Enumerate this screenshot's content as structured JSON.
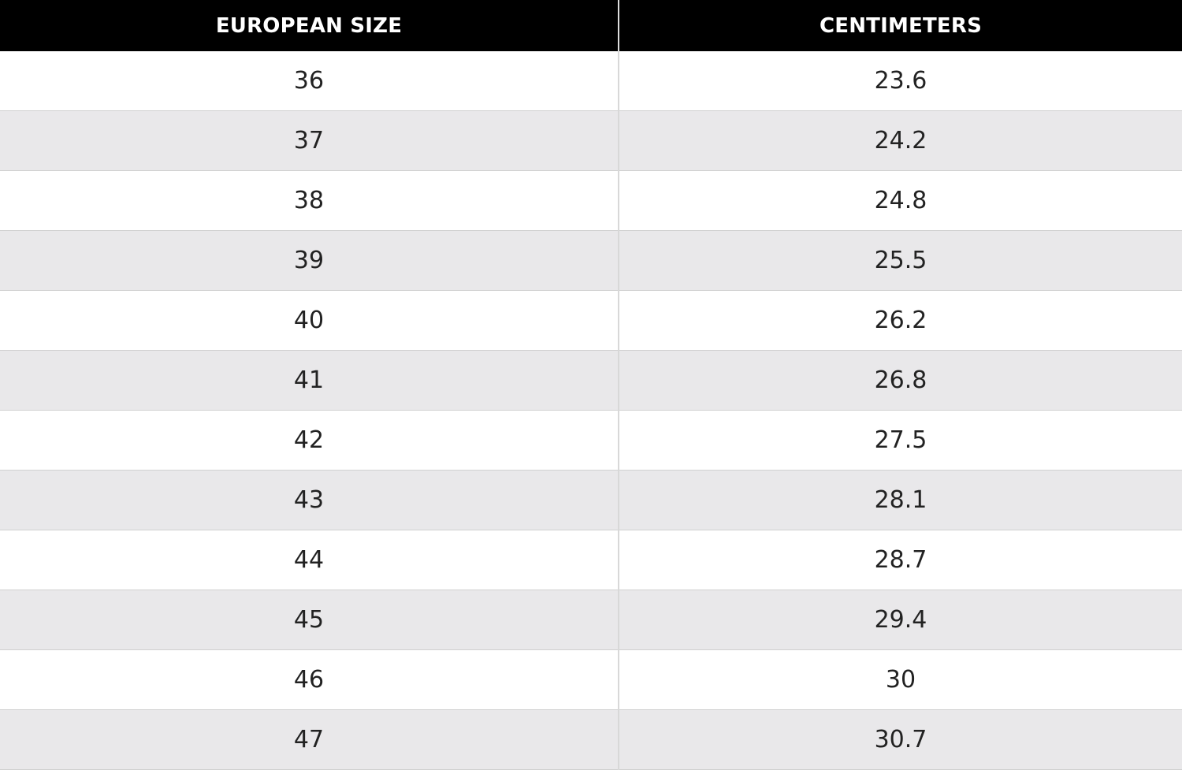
{
  "table": {
    "header": [
      "EUROPEAN SIZE",
      "CENTIMETERS"
    ],
    "rows": [
      [
        "36",
        "23.6"
      ],
      [
        "37",
        "24.2"
      ],
      [
        "38",
        "24.8"
      ],
      [
        "39",
        "25.5"
      ],
      [
        "40",
        "26.2"
      ],
      [
        "41",
        "26.8"
      ],
      [
        "42",
        "27.5"
      ],
      [
        "43",
        "28.1"
      ],
      [
        "44",
        "28.7"
      ],
      [
        "45",
        "29.4"
      ],
      [
        "46",
        "30"
      ],
      [
        "47",
        "30.7"
      ]
    ]
  }
}
